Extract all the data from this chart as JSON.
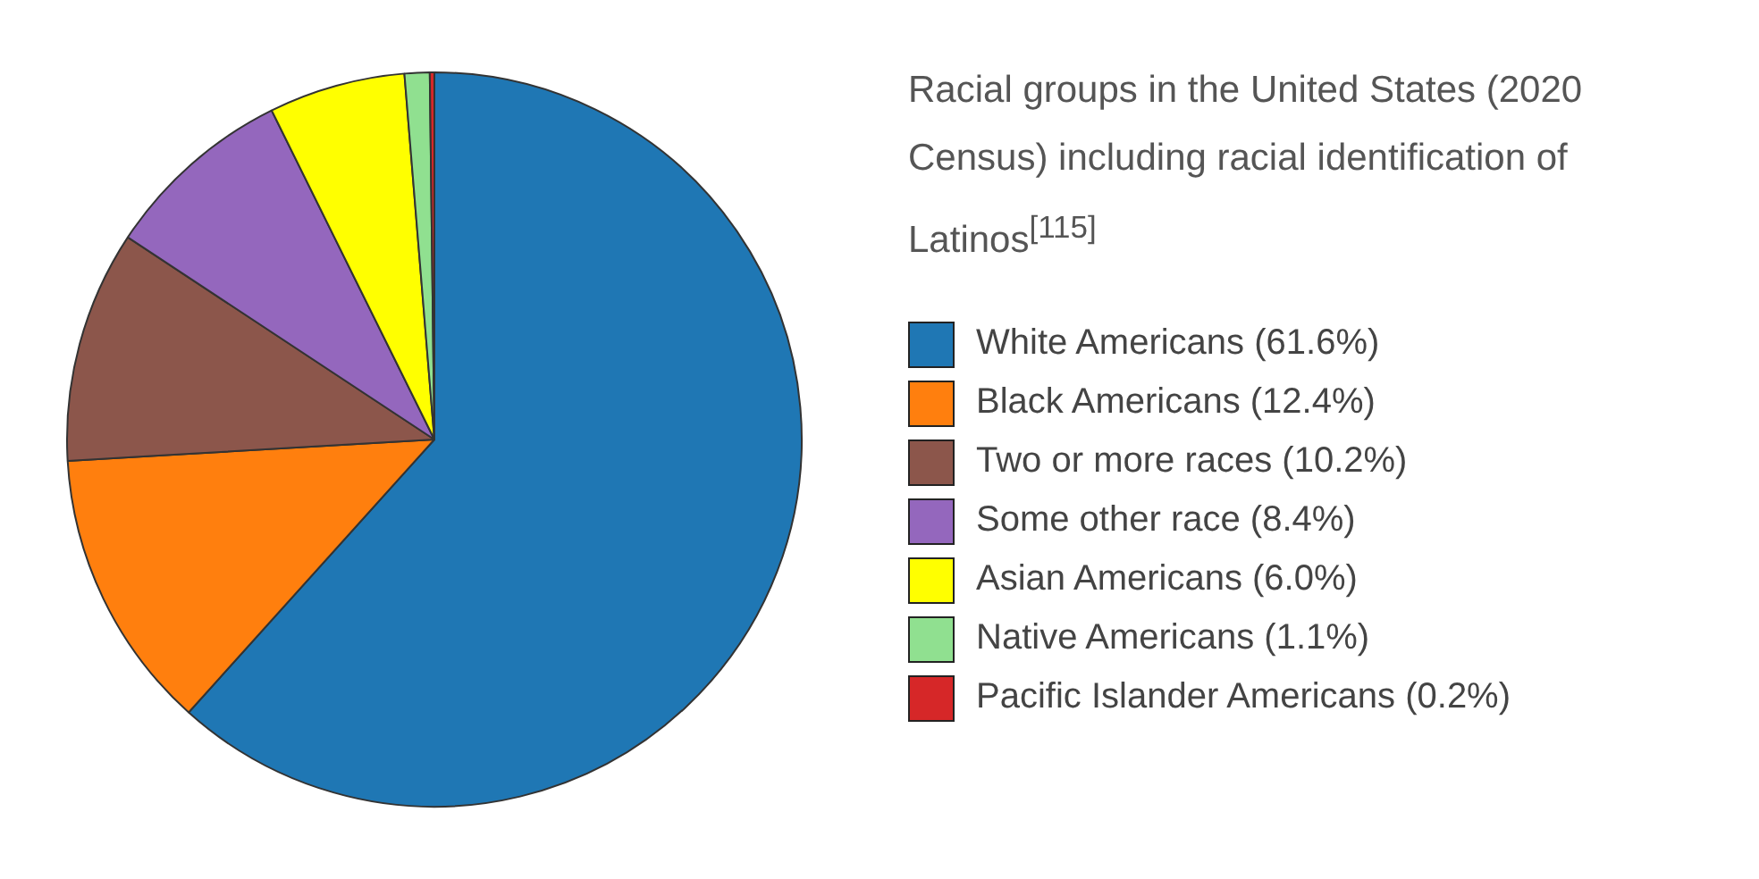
{
  "chart_data": {
    "type": "pie",
    "title": "Racial groups in the United States (2020 Census) including racial identification of Latinos$^{[115]}$",
    "categories": [
      "White Americans (61.6%)",
      "Black Americans (12.4%)",
      "Two or more races (10.2%)",
      "Some other race (8.4%)",
      "Asian Americans (6.0%)",
      "Native Americans (1.1%)",
      "Pacific Islander Americans (0.2%)"
    ],
    "values": [
      61.6,
      12.4,
      10.2,
      8.4,
      6.0,
      1.1,
      0.2
    ],
    "colors": [
      "#1f77b4",
      "#ff7f0e",
      "#8c564b",
      "#9467bd",
      "#ffff00",
      "#90e090",
      "#d62728"
    ],
    "legend": "right"
  }
}
